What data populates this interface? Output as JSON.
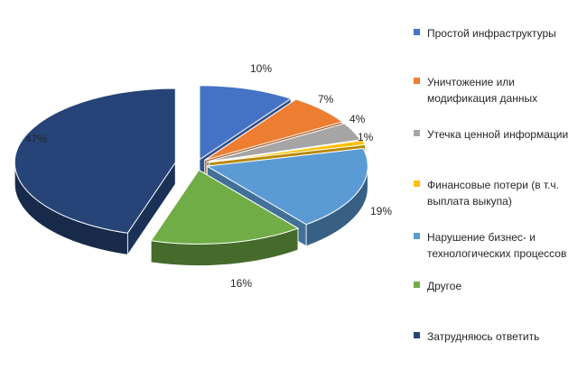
{
  "chart_data": {
    "type": "pie",
    "style": "3d-exploded",
    "legend_position": "right",
    "slices": [
      {
        "label": "Простой инфраструктуры",
        "value": 10,
        "display": "10%",
        "color": "#4472C4"
      },
      {
        "label": "Уничтожение или модификация данных",
        "value": 7,
        "display": "7%",
        "color": "#ED7D31"
      },
      {
        "label": "Утечка ценной информации",
        "value": 4,
        "display": "4%",
        "color": "#A5A5A5"
      },
      {
        "label": "Финансовые потери (в т.ч. выплата выкупа)",
        "value": 1,
        "display": "1%",
        "color": "#FFC000"
      },
      {
        "label": "Нарушение бизнес- и технологических процессов",
        "value": 19,
        "display": "19%",
        "color": "#5B9BD5"
      },
      {
        "label": "Другое",
        "value": 16,
        "display": "16%",
        "color": "#70AD47"
      },
      {
        "label": "Затрудняюсь ответить",
        "value": 47,
        "display": "47%",
        "color": "#264478"
      }
    ],
    "legend_lines": [
      [
        "Простой инфраструктуры"
      ],
      [
        "Уничтожение или",
        "модификация данных"
      ],
      [
        "Утечка ценной информации"
      ],
      [
        "Финансовые потери (в т.ч.",
        "выплата выкупа)"
      ],
      [
        "Нарушение бизнес- и",
        "технологических процессов"
      ],
      [
        "Другое"
      ],
      [
        "Затрудняюсь ответить"
      ]
    ]
  }
}
